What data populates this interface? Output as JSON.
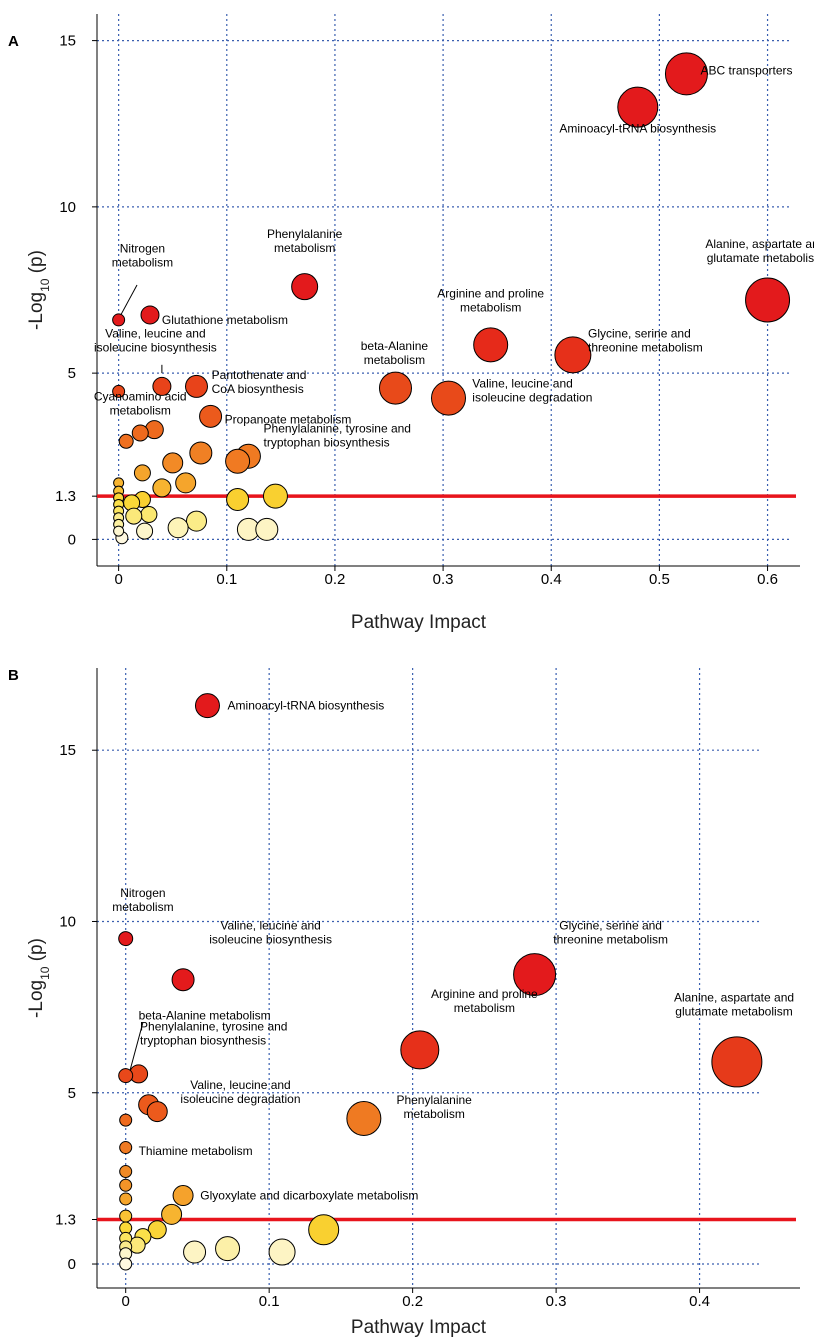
{
  "chart_data": [
    {
      "type": "scatter",
      "panel": "A",
      "xlabel": "Pathway Impact",
      "ylabel": "-Log",
      "ylabel_sub": "10",
      "ylabel_tail": " (p)",
      "xlim": [
        -0.02,
        0.63
      ],
      "ylim": [
        -0.8,
        15.8
      ],
      "xticks": [
        {
          "v": 0,
          "label": "0"
        },
        {
          "v": 0.1,
          "label": "0.1"
        },
        {
          "v": 0.2,
          "label": "0.2"
        },
        {
          "v": 0.3,
          "label": "0.3"
        },
        {
          "v": 0.4,
          "label": "0.4"
        },
        {
          "v": 0.5,
          "label": "0.5"
        },
        {
          "v": 0.6,
          "label": "0.6"
        }
      ],
      "yticks": [
        {
          "v": 0,
          "label": "0"
        },
        {
          "v": 1.3,
          "label": "1.3"
        },
        {
          "v": 5,
          "label": "5"
        },
        {
          "v": 10,
          "label": "10"
        },
        {
          "v": 15,
          "label": "15"
        }
      ],
      "gridx": [
        0,
        0.1,
        0.2,
        0.3,
        0.4,
        0.5,
        0.6
      ],
      "gridy": [
        0,
        5,
        10,
        15
      ],
      "threshold": 1.3,
      "threshold_color": "#e8141c",
      "points": [
        {
          "x": 0.525,
          "y": 14.0,
          "r": 21,
          "c": "#e31a1c"
        },
        {
          "x": 0.48,
          "y": 13.0,
          "r": 20,
          "c": "#e31a1c"
        },
        {
          "x": 0.6,
          "y": 7.2,
          "r": 22,
          "c": "#e31a1c"
        },
        {
          "x": 0.172,
          "y": 7.6,
          "r": 13,
          "c": "#e31a1c"
        },
        {
          "x": 0.344,
          "y": 5.85,
          "r": 17,
          "c": "#e62a1a"
        },
        {
          "x": 0.42,
          "y": 5.55,
          "r": 18,
          "c": "#e6301a"
        },
        {
          "x": 0.0,
          "y": 6.6,
          "r": 6,
          "c": "#e31a1c"
        },
        {
          "x": 0.029,
          "y": 6.75,
          "r": 9,
          "c": "#e31a1c"
        },
        {
          "x": 0.256,
          "y": 4.55,
          "r": 16,
          "c": "#e84a1a"
        },
        {
          "x": 0.305,
          "y": 4.25,
          "r": 17,
          "c": "#e84a1a"
        },
        {
          "x": 0.04,
          "y": 4.6,
          "r": 9,
          "c": "#e8431a"
        },
        {
          "x": 0.072,
          "y": 4.6,
          "r": 11,
          "c": "#e8431a"
        },
        {
          "x": 0.0,
          "y": 4.45,
          "r": 6,
          "c": "#e8481a"
        },
        {
          "x": 0.085,
          "y": 3.7,
          "r": 11,
          "c": "#ec5a1c"
        },
        {
          "x": 0.033,
          "y": 3.3,
          "r": 9,
          "c": "#ee6a1e"
        },
        {
          "x": 0.02,
          "y": 3.2,
          "r": 8,
          "c": "#ee6a1e"
        },
        {
          "x": 0.007,
          "y": 2.95,
          "r": 7,
          "c": "#ef7020"
        },
        {
          "x": 0.12,
          "y": 2.5,
          "r": 12,
          "c": "#f07a22"
        },
        {
          "x": 0.11,
          "y": 2.35,
          "r": 12,
          "c": "#f07a22"
        },
        {
          "x": 0.076,
          "y": 2.6,
          "r": 11,
          "c": "#f08024"
        },
        {
          "x": 0.05,
          "y": 2.3,
          "r": 10,
          "c": "#f28a26"
        },
        {
          "x": 0.022,
          "y": 2.0,
          "r": 8,
          "c": "#f5a52c"
        },
        {
          "x": 0.062,
          "y": 1.7,
          "r": 10,
          "c": "#f5a52c"
        },
        {
          "x": 0.04,
          "y": 1.55,
          "r": 9,
          "c": "#f7b430"
        },
        {
          "x": 0.0,
          "y": 1.7,
          "r": 5,
          "c": "#f7b430"
        },
        {
          "x": 0.0,
          "y": 1.45,
          "r": 5,
          "c": "#f9c234"
        },
        {
          "x": 0.145,
          "y": 1.3,
          "r": 12,
          "c": "#f9d030"
        },
        {
          "x": 0.11,
          "y": 1.2,
          "r": 11,
          "c": "#f9d030"
        },
        {
          "x": 0.022,
          "y": 1.2,
          "r": 8,
          "c": "#f9d030"
        },
        {
          "x": 0.012,
          "y": 1.1,
          "r": 8,
          "c": "#fad838"
        },
        {
          "x": 0.0,
          "y": 1.25,
          "r": 5,
          "c": "#fad838"
        },
        {
          "x": 0.0,
          "y": 1.05,
          "r": 5,
          "c": "#fbe04a"
        },
        {
          "x": 0.0,
          "y": 0.85,
          "r": 5,
          "c": "#fbe560"
        },
        {
          "x": 0.028,
          "y": 0.75,
          "r": 8,
          "c": "#fbe870"
        },
        {
          "x": 0.014,
          "y": 0.7,
          "r": 8,
          "c": "#fbe87a"
        },
        {
          "x": 0.072,
          "y": 0.55,
          "r": 10,
          "c": "#fbec88"
        },
        {
          "x": 0.0,
          "y": 0.65,
          "r": 5,
          "c": "#fbec8c"
        },
        {
          "x": 0.0,
          "y": 0.45,
          "r": 5,
          "c": "#fcf0a0"
        },
        {
          "x": 0.055,
          "y": 0.35,
          "r": 10,
          "c": "#fdf4b8"
        },
        {
          "x": 0.12,
          "y": 0.3,
          "r": 11,
          "c": "#fdf4c4"
        },
        {
          "x": 0.137,
          "y": 0.3,
          "r": 11,
          "c": "#fdf4c4"
        },
        {
          "x": 0.024,
          "y": 0.25,
          "r": 8,
          "c": "#fdf6cc"
        },
        {
          "x": 0.0,
          "y": 0.25,
          "r": 5,
          "c": "#fdf6d0"
        },
        {
          "x": 0.003,
          "y": 0.05,
          "r": 6,
          "c": "#fef8e0"
        }
      ],
      "labels": [
        {
          "lines": [
            "ABC transporters"
          ],
          "x": 0.538,
          "y": 14.1,
          "anchor": "start"
        },
        {
          "lines": [
            "Aminoacyl-tRNA biosynthesis"
          ],
          "x": 0.48,
          "y": 12.35,
          "anchor": "middle"
        },
        {
          "lines": [
            "Alanine, aspartate and",
            "glutamate metabolism"
          ],
          "x": 0.598,
          "y": 8.65,
          "anchor": "middle"
        },
        {
          "lines": [
            "Phenylalanine",
            "metabolism"
          ],
          "x": 0.172,
          "y": 8.95,
          "anchor": "middle"
        },
        {
          "lines": [
            "Arginine and proline",
            "metabolism"
          ],
          "x": 0.344,
          "y": 7.15,
          "anchor": "middle"
        },
        {
          "lines": [
            "Glycine, serine and",
            "threonine metabolism"
          ],
          "x": 0.434,
          "y": 5.95,
          "anchor": "start"
        },
        {
          "lines": [
            "Nitrogen",
            "metabolism"
          ],
          "x": 0.022,
          "y": 8.5,
          "anchor": "middle"
        },
        {
          "lines": [
            "Glutathione metabolism"
          ],
          "x": 0.04,
          "y": 6.6,
          "anchor": "start"
        },
        {
          "lines": [
            "Valine, leucine and",
            "isoleucine biosynthesis"
          ],
          "x": 0.034,
          "y": 5.95,
          "anchor": "middle"
        },
        {
          "lines": [
            "beta-Alanine",
            "metabolism"
          ],
          "x": 0.255,
          "y": 5.58,
          "anchor": "middle"
        },
        {
          "lines": [
            "Valine, leucine and",
            "isoleucine degradation"
          ],
          "x": 0.327,
          "y": 4.45,
          "anchor": "start"
        },
        {
          "lines": [
            "Pantothenate and",
            "CoA biosynthesis"
          ],
          "x": 0.086,
          "y": 4.7,
          "anchor": "start"
        },
        {
          "lines": [
            "Cyanoamino acid",
            "metabolism"
          ],
          "x": 0.02,
          "y": 4.05,
          "anchor": "middle"
        },
        {
          "lines": [
            "Propanoate metabolism"
          ],
          "x": 0.098,
          "y": 3.6,
          "anchor": "start"
        },
        {
          "lines": [
            "Phenylalanine, tyrosine and",
            "tryptophan biosynthesis"
          ],
          "x": 0.134,
          "y": 3.1,
          "anchor": "start"
        }
      ],
      "leaders": [
        {
          "x1": 0.017,
          "y1": 7.65,
          "x2": 0.002,
          "y2": 6.75
        },
        {
          "x1": 0.04,
          "y1": 5.0,
          "x2": 0.04,
          "y2": 5.25
        }
      ]
    },
    {
      "type": "scatter",
      "panel": "B",
      "xlabel": "Pathway Impact",
      "ylabel": "-Log",
      "ylabel_sub": "10",
      "ylabel_tail": " (p)",
      "xlim": [
        -0.02,
        0.47
      ],
      "ylim": [
        -0.7,
        17.4
      ],
      "xticks": [
        {
          "v": 0,
          "label": "0"
        },
        {
          "v": 0.1,
          "label": "0.1"
        },
        {
          "v": 0.2,
          "label": "0.2"
        },
        {
          "v": 0.3,
          "label": "0.3"
        },
        {
          "v": 0.4,
          "label": "0.4"
        }
      ],
      "yticks": [
        {
          "v": 0,
          "label": "0"
        },
        {
          "v": 1.3,
          "label": "1.3"
        },
        {
          "v": 5,
          "label": "5"
        },
        {
          "v": 10,
          "label": "10"
        },
        {
          "v": 15,
          "label": "15"
        }
      ],
      "gridx": [
        0,
        0.1,
        0.2,
        0.3,
        0.4
      ],
      "gridy": [
        0,
        5,
        10,
        15
      ],
      "threshold": 1.3,
      "threshold_color": "#e8141c",
      "points": [
        {
          "x": 0.057,
          "y": 16.3,
          "r": 12,
          "c": "#e31a1c"
        },
        {
          "x": 0.285,
          "y": 8.45,
          "r": 21,
          "c": "#e31a1c"
        },
        {
          "x": 0.426,
          "y": 5.9,
          "r": 25,
          "c": "#e63a1a"
        },
        {
          "x": 0.205,
          "y": 6.25,
          "r": 19,
          "c": "#e6301a"
        },
        {
          "x": 0.0,
          "y": 9.5,
          "r": 7,
          "c": "#e31a1c"
        },
        {
          "x": 0.04,
          "y": 8.3,
          "r": 11,
          "c": "#e31a1c"
        },
        {
          "x": 0.0,
          "y": 5.5,
          "r": 7,
          "c": "#e8481a"
        },
        {
          "x": 0.009,
          "y": 5.55,
          "r": 9,
          "c": "#e8481a"
        },
        {
          "x": 0.166,
          "y": 4.25,
          "r": 17,
          "c": "#ef7a22"
        },
        {
          "x": 0.016,
          "y": 4.65,
          "r": 10,
          "c": "#ec5a1c"
        },
        {
          "x": 0.022,
          "y": 4.45,
          "r": 10,
          "c": "#ec5a1c"
        },
        {
          "x": 0.0,
          "y": 4.2,
          "r": 6,
          "c": "#ee6a1e"
        },
        {
          "x": 0.0,
          "y": 3.4,
          "r": 6,
          "c": "#ef7a22"
        },
        {
          "x": 0.0,
          "y": 2.7,
          "r": 6,
          "c": "#f08a26"
        },
        {
          "x": 0.0,
          "y": 2.3,
          "r": 6,
          "c": "#f29428"
        },
        {
          "x": 0.0,
          "y": 1.9,
          "r": 6,
          "c": "#f5a52c"
        },
        {
          "x": 0.04,
          "y": 2.0,
          "r": 10,
          "c": "#f5a22c"
        },
        {
          "x": 0.032,
          "y": 1.45,
          "r": 10,
          "c": "#f7b430"
        },
        {
          "x": 0.0,
          "y": 1.4,
          "r": 6,
          "c": "#f9c234"
        },
        {
          "x": 0.138,
          "y": 1.0,
          "r": 15,
          "c": "#f9d030"
        },
        {
          "x": 0.022,
          "y": 1.0,
          "r": 9,
          "c": "#f9d438"
        },
        {
          "x": 0.0,
          "y": 1.05,
          "r": 6,
          "c": "#fad838"
        },
        {
          "x": 0.012,
          "y": 0.8,
          "r": 8,
          "c": "#fbe04a"
        },
        {
          "x": 0.0,
          "y": 0.75,
          "r": 6,
          "c": "#fbe560"
        },
        {
          "x": 0.008,
          "y": 0.55,
          "r": 8,
          "c": "#fbe87a"
        },
        {
          "x": 0.0,
          "y": 0.5,
          "r": 6,
          "c": "#fbec8c"
        },
        {
          "x": 0.071,
          "y": 0.45,
          "r": 12,
          "c": "#fcf0a8"
        },
        {
          "x": 0.109,
          "y": 0.35,
          "r": 13,
          "c": "#fdf4c4"
        },
        {
          "x": 0.048,
          "y": 0.35,
          "r": 11,
          "c": "#fdf4c4"
        },
        {
          "x": 0.0,
          "y": 0.3,
          "r": 6,
          "c": "#fdf6cc"
        },
        {
          "x": 0.0,
          "y": 0.0,
          "r": 6,
          "c": "#fef8e0"
        }
      ],
      "labels": [
        {
          "lines": [
            "Aminoacyl-tRNA biosynthesis"
          ],
          "x": 0.071,
          "y": 16.3,
          "anchor": "start"
        },
        {
          "lines": [
            "Glycine, serine and",
            "threonine metabolism"
          ],
          "x": 0.338,
          "y": 9.65,
          "anchor": "middle"
        },
        {
          "lines": [
            "Alanine, aspartate and",
            "glutamate metabolism"
          ],
          "x": 0.424,
          "y": 7.55,
          "anchor": "middle"
        },
        {
          "lines": [
            "Arginine and proline",
            "metabolism"
          ],
          "x": 0.25,
          "y": 7.65,
          "anchor": "middle"
        },
        {
          "lines": [
            "Nitrogen",
            "metabolism"
          ],
          "x": 0.012,
          "y": 10.6,
          "anchor": "middle"
        },
        {
          "lines": [
            "Valine, leucine and",
            "isoleucine biosynthesis"
          ],
          "x": 0.101,
          "y": 9.65,
          "anchor": "middle"
        },
        {
          "lines": [
            "beta-Alanine metabolism"
          ],
          "x": 0.009,
          "y": 7.25,
          "anchor": "start"
        },
        {
          "lines": [
            "Phenylalanine, tyrosine and",
            "tryptophan biosynthesis"
          ],
          "x": 0.01,
          "y": 6.7,
          "anchor": "start"
        },
        {
          "lines": [
            "Phenylalanine",
            "metabolism"
          ],
          "x": 0.215,
          "y": 4.55,
          "anchor": "middle"
        },
        {
          "lines": [
            "Valine, leucine and",
            "isoleucine degradation"
          ],
          "x": 0.08,
          "y": 5.0,
          "anchor": "middle"
        },
        {
          "lines": [
            "Thiamine metabolism"
          ],
          "x": 0.009,
          "y": 3.3,
          "anchor": "start"
        },
        {
          "lines": [
            "Glyoxylate and dicarboxylate metabolism"
          ],
          "x": 0.052,
          "y": 2.0,
          "anchor": "start"
        }
      ],
      "leaders": [
        {
          "x1": 0.012,
          "y1": 7.05,
          "x2": 0.003,
          "y2": 5.65
        }
      ]
    }
  ]
}
